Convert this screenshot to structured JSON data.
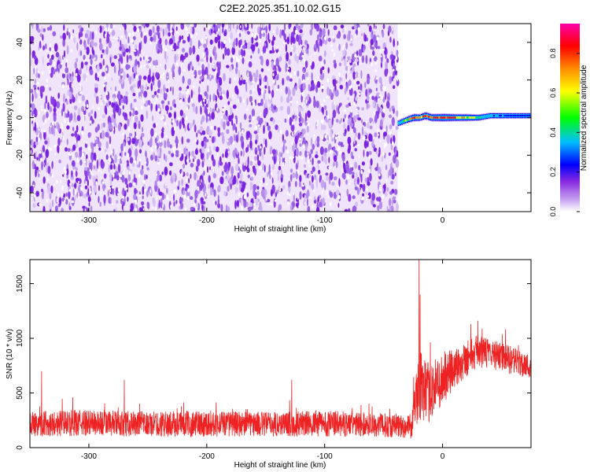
{
  "title": "C2E2.2025.351.10.02.G15",
  "chart_data": [
    {
      "type": "heatmap",
      "name": "spectrogram",
      "xlabel": "Height of straight line (km)",
      "ylabel": "Frequency (Hz)",
      "xlim": [
        -350,
        75
      ],
      "ylim": [
        -50,
        50
      ],
      "xticks": [
        -300,
        -200,
        -100,
        0
      ],
      "yticks": [
        -40,
        -20,
        0,
        20,
        40
      ],
      "grid": false,
      "noise_region_x": [
        -350,
        -38
      ],
      "signal_track": {
        "x": [
          -38,
          -30,
          -25,
          -20,
          -15,
          -10,
          -5,
          0,
          10,
          20,
          30,
          40,
          50,
          60,
          75
        ],
        "freq": [
          -3,
          -1,
          0,
          0,
          1,
          0,
          0,
          0,
          0,
          0,
          0,
          1,
          1,
          1,
          1
        ],
        "amplitude": [
          0.45,
          0.7,
          0.9,
          0.75,
          0.95,
          0.85,
          0.9,
          1.0,
          0.8,
          0.75,
          0.5,
          0.4,
          0.35,
          0.3,
          0.3
        ]
      },
      "colorbar": {
        "label": "Normalized spectral amplitude",
        "range": [
          0.0,
          0.95
        ],
        "ticks": [
          0.0,
          0.2,
          0.4,
          0.6,
          0.8
        ],
        "colors": [
          "#ffffff",
          "#8a2be2",
          "#0000ff",
          "#00bfff",
          "#00ff00",
          "#ffff00",
          "#ff8c00",
          "#ff0000",
          "#ff00aa"
        ]
      }
    },
    {
      "type": "line",
      "name": "snr",
      "xlabel": "Height of straight line (km)",
      "ylabel": "SNR (10 * v/v)",
      "xlim": [
        -350,
        75
      ],
      "ylim": [
        0,
        1720
      ],
      "xticks": [
        -300,
        -200,
        -100,
        0
      ],
      "yticks": [
        0,
        500,
        1000,
        1500
      ],
      "grid": false,
      "color": "#ee2222",
      "envelope": {
        "x": [
          -350,
          -300,
          -250,
          -200,
          -150,
          -100,
          -60,
          -40,
          -26,
          -24,
          -22,
          -20,
          -18,
          -16,
          -12,
          -8,
          -4,
          0,
          10,
          20,
          30,
          40,
          50,
          60,
          70,
          75
        ],
        "mean": [
          220,
          225,
          215,
          220,
          215,
          220,
          210,
          200,
          190,
          380,
          450,
          520,
          600,
          480,
          500,
          540,
          580,
          620,
          720,
          820,
          880,
          860,
          830,
          790,
          760,
          730
        ],
        "spread": [
          120,
          120,
          115,
          120,
          115,
          120,
          110,
          110,
          110,
          200,
          250,
          300,
          350,
          300,
          280,
          260,
          250,
          240,
          200,
          170,
          150,
          140,
          130,
          130,
          120,
          110
        ]
      },
      "spikes": [
        {
          "x": -20,
          "y": 1720
        },
        {
          "x": -19,
          "y": 1400
        },
        {
          "x": -340,
          "y": 700
        },
        {
          "x": -270,
          "y": 620
        },
        {
          "x": -128,
          "y": 620
        },
        {
          "x": 30,
          "y": 1160
        },
        {
          "x": 24,
          "y": 1130
        }
      ]
    }
  ]
}
